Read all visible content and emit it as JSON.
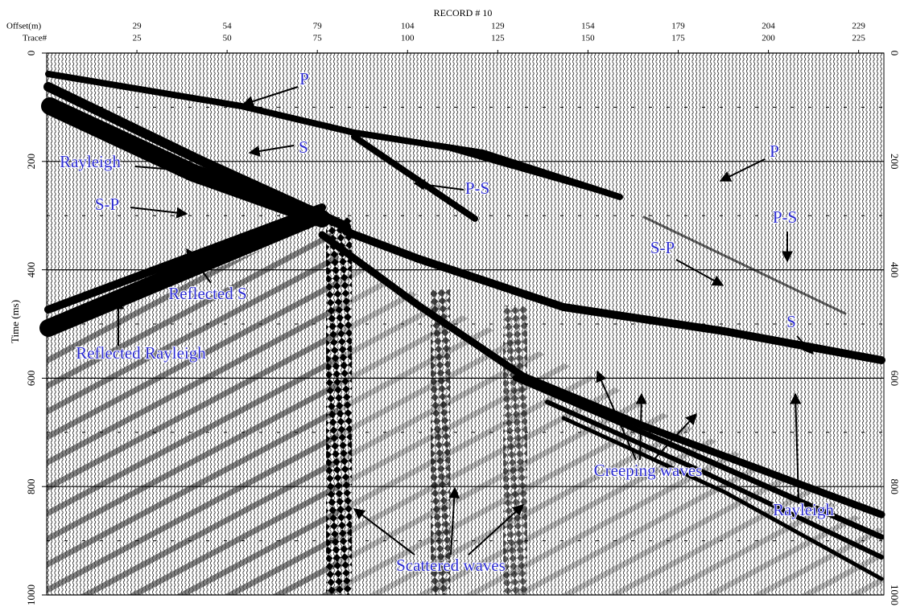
{
  "chart_data": {
    "type": "seismic",
    "title": "RECORD # 10",
    "xlabel": "Trace#",
    "x2label": "Offset(m)",
    "ylabel": "Time (ms)",
    "xlim": [
      0,
      232
    ],
    "xticks": [
      25,
      50,
      75,
      100,
      125,
      150,
      175,
      200,
      225
    ],
    "x2lim": [
      4,
      236
    ],
    "x2ticks": [
      29,
      54,
      79,
      104,
      129,
      154,
      179,
      204,
      229
    ],
    "ylim": [
      0,
      1000
    ],
    "yticks": [
      0,
      200,
      400,
      600,
      800,
      1000
    ],
    "yminorticks": [
      100,
      300,
      500,
      700,
      900
    ],
    "grid": true,
    "annotation_color": "#2a2ad0",
    "annotations": [
      "P",
      "S",
      "Rayleigh",
      "P-S",
      "P",
      "S-P",
      "P-S",
      "S-P",
      "Reflected S",
      "S",
      "Reflected Rayleigh",
      "Creeping waves",
      "Rayleigh",
      "Scattered waves"
    ]
  }
}
